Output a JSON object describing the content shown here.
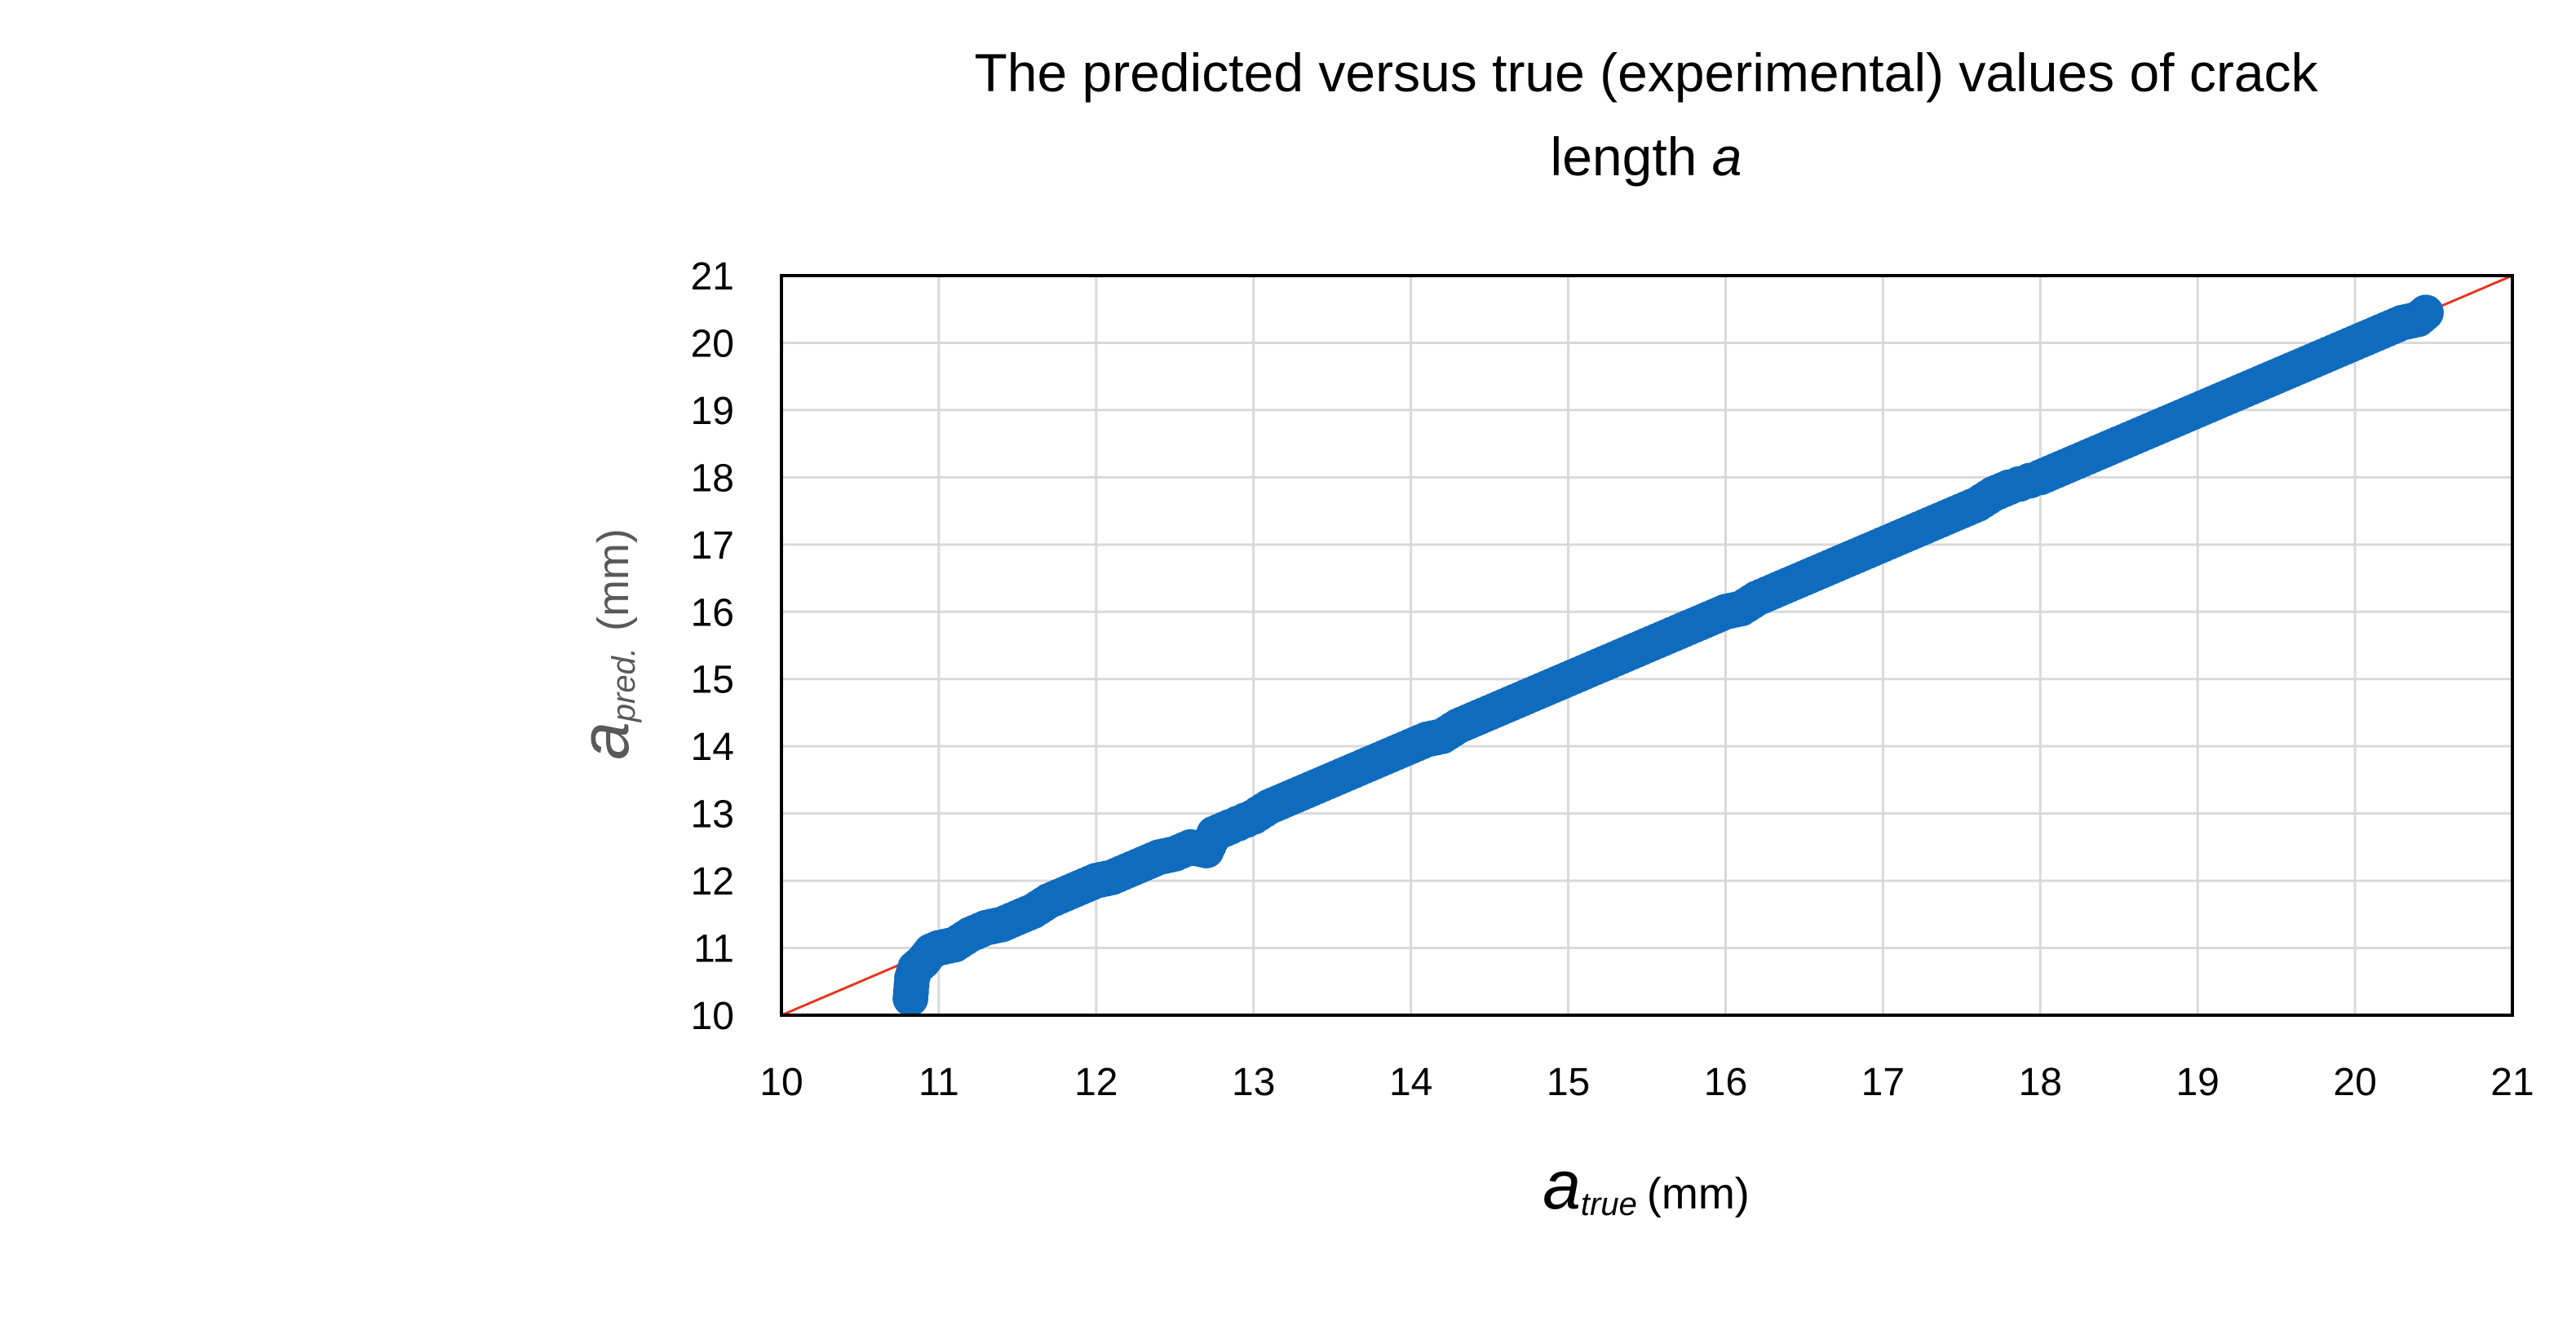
{
  "chart_data": {
    "type": "scatter",
    "title_line1": "The predicted versus true (experimental) values of crack",
    "title_line2_prefix": "length ",
    "title_line2_italic": "a",
    "xlabel": {
      "symbol": "a",
      "subscript": "true",
      "unit": "(mm)"
    },
    "ylabel": {
      "symbol": "a",
      "subscript": "pred.",
      "unit": "(mm)"
    },
    "xlim": [
      10,
      21
    ],
    "ylim": [
      10,
      21
    ],
    "x_ticks": [
      "10",
      "11",
      "12",
      "13",
      "14",
      "15",
      "16",
      "17",
      "18",
      "19",
      "20",
      "21"
    ],
    "y_ticks": [
      "10",
      "11",
      "12",
      "13",
      "14",
      "15",
      "16",
      "17",
      "18",
      "19",
      "20",
      "21"
    ],
    "grid": true,
    "reference_line": {
      "x": [
        10,
        21
      ],
      "y": [
        10,
        21
      ],
      "color": "#e8331c"
    },
    "series": [
      {
        "color": "#0f6bbd",
        "points": [
          [
            10.82,
            10.25
          ],
          [
            10.83,
            10.55
          ],
          [
            10.85,
            10.7
          ],
          [
            10.9,
            10.8
          ],
          [
            10.95,
            10.95
          ],
          [
            11.0,
            11.0
          ],
          [
            11.1,
            11.05
          ],
          [
            11.2,
            11.2
          ],
          [
            11.3,
            11.3
          ],
          [
            11.4,
            11.35
          ],
          [
            11.5,
            11.45
          ],
          [
            11.6,
            11.55
          ],
          [
            11.7,
            11.7
          ],
          [
            11.8,
            11.8
          ],
          [
            11.9,
            11.9
          ],
          [
            12.0,
            12.0
          ],
          [
            12.1,
            12.05
          ],
          [
            12.2,
            12.15
          ],
          [
            12.3,
            12.25
          ],
          [
            12.4,
            12.35
          ],
          [
            12.5,
            12.4
          ],
          [
            12.6,
            12.5
          ],
          [
            12.7,
            12.45
          ],
          [
            12.75,
            12.7
          ],
          [
            12.85,
            12.8
          ],
          [
            13.0,
            12.95
          ],
          [
            13.1,
            13.1
          ],
          [
            13.2,
            13.2
          ],
          [
            13.3,
            13.3
          ],
          [
            13.4,
            13.4
          ],
          [
            13.5,
            13.5
          ],
          [
            13.6,
            13.6
          ],
          [
            13.7,
            13.7
          ],
          [
            13.8,
            13.8
          ],
          [
            13.9,
            13.9
          ],
          [
            14.0,
            14.0
          ],
          [
            14.1,
            14.1
          ],
          [
            14.2,
            14.15
          ],
          [
            14.3,
            14.3
          ],
          [
            14.4,
            14.4
          ],
          [
            14.5,
            14.5
          ],
          [
            14.6,
            14.6
          ],
          [
            14.7,
            14.7
          ],
          [
            14.8,
            14.8
          ],
          [
            14.9,
            14.9
          ],
          [
            15.0,
            15.0
          ],
          [
            15.1,
            15.1
          ],
          [
            15.2,
            15.2
          ],
          [
            15.3,
            15.3
          ],
          [
            15.4,
            15.4
          ],
          [
            15.5,
            15.5
          ],
          [
            15.6,
            15.6
          ],
          [
            15.7,
            15.7
          ],
          [
            15.8,
            15.8
          ],
          [
            15.9,
            15.9
          ],
          [
            16.0,
            16.0
          ],
          [
            16.1,
            16.05
          ],
          [
            16.2,
            16.2
          ],
          [
            16.3,
            16.3
          ],
          [
            16.4,
            16.4
          ],
          [
            16.5,
            16.5
          ],
          [
            16.6,
            16.6
          ],
          [
            16.7,
            16.7
          ],
          [
            16.8,
            16.8
          ],
          [
            16.9,
            16.9
          ],
          [
            17.0,
            17.0
          ],
          [
            17.1,
            17.1
          ],
          [
            17.2,
            17.2
          ],
          [
            17.3,
            17.3
          ],
          [
            17.4,
            17.4
          ],
          [
            17.5,
            17.5
          ],
          [
            17.6,
            17.6
          ],
          [
            17.7,
            17.75
          ],
          [
            17.8,
            17.85
          ],
          [
            18.0,
            18.0
          ],
          [
            18.1,
            18.1
          ],
          [
            18.2,
            18.2
          ],
          [
            18.3,
            18.3
          ],
          [
            18.4,
            18.4
          ],
          [
            18.5,
            18.5
          ],
          [
            18.6,
            18.6
          ],
          [
            18.7,
            18.7
          ],
          [
            18.8,
            18.8
          ],
          [
            18.9,
            18.9
          ],
          [
            19.0,
            19.0
          ],
          [
            19.1,
            19.1
          ],
          [
            19.2,
            19.2
          ],
          [
            19.3,
            19.3
          ],
          [
            19.4,
            19.4
          ],
          [
            19.5,
            19.5
          ],
          [
            19.6,
            19.6
          ],
          [
            19.7,
            19.7
          ],
          [
            19.8,
            19.8
          ],
          [
            19.9,
            19.9
          ],
          [
            20.0,
            20.0
          ],
          [
            20.1,
            20.1
          ],
          [
            20.2,
            20.2
          ],
          [
            20.3,
            20.3
          ],
          [
            20.4,
            20.35
          ],
          [
            20.45,
            20.45
          ]
        ]
      }
    ]
  }
}
